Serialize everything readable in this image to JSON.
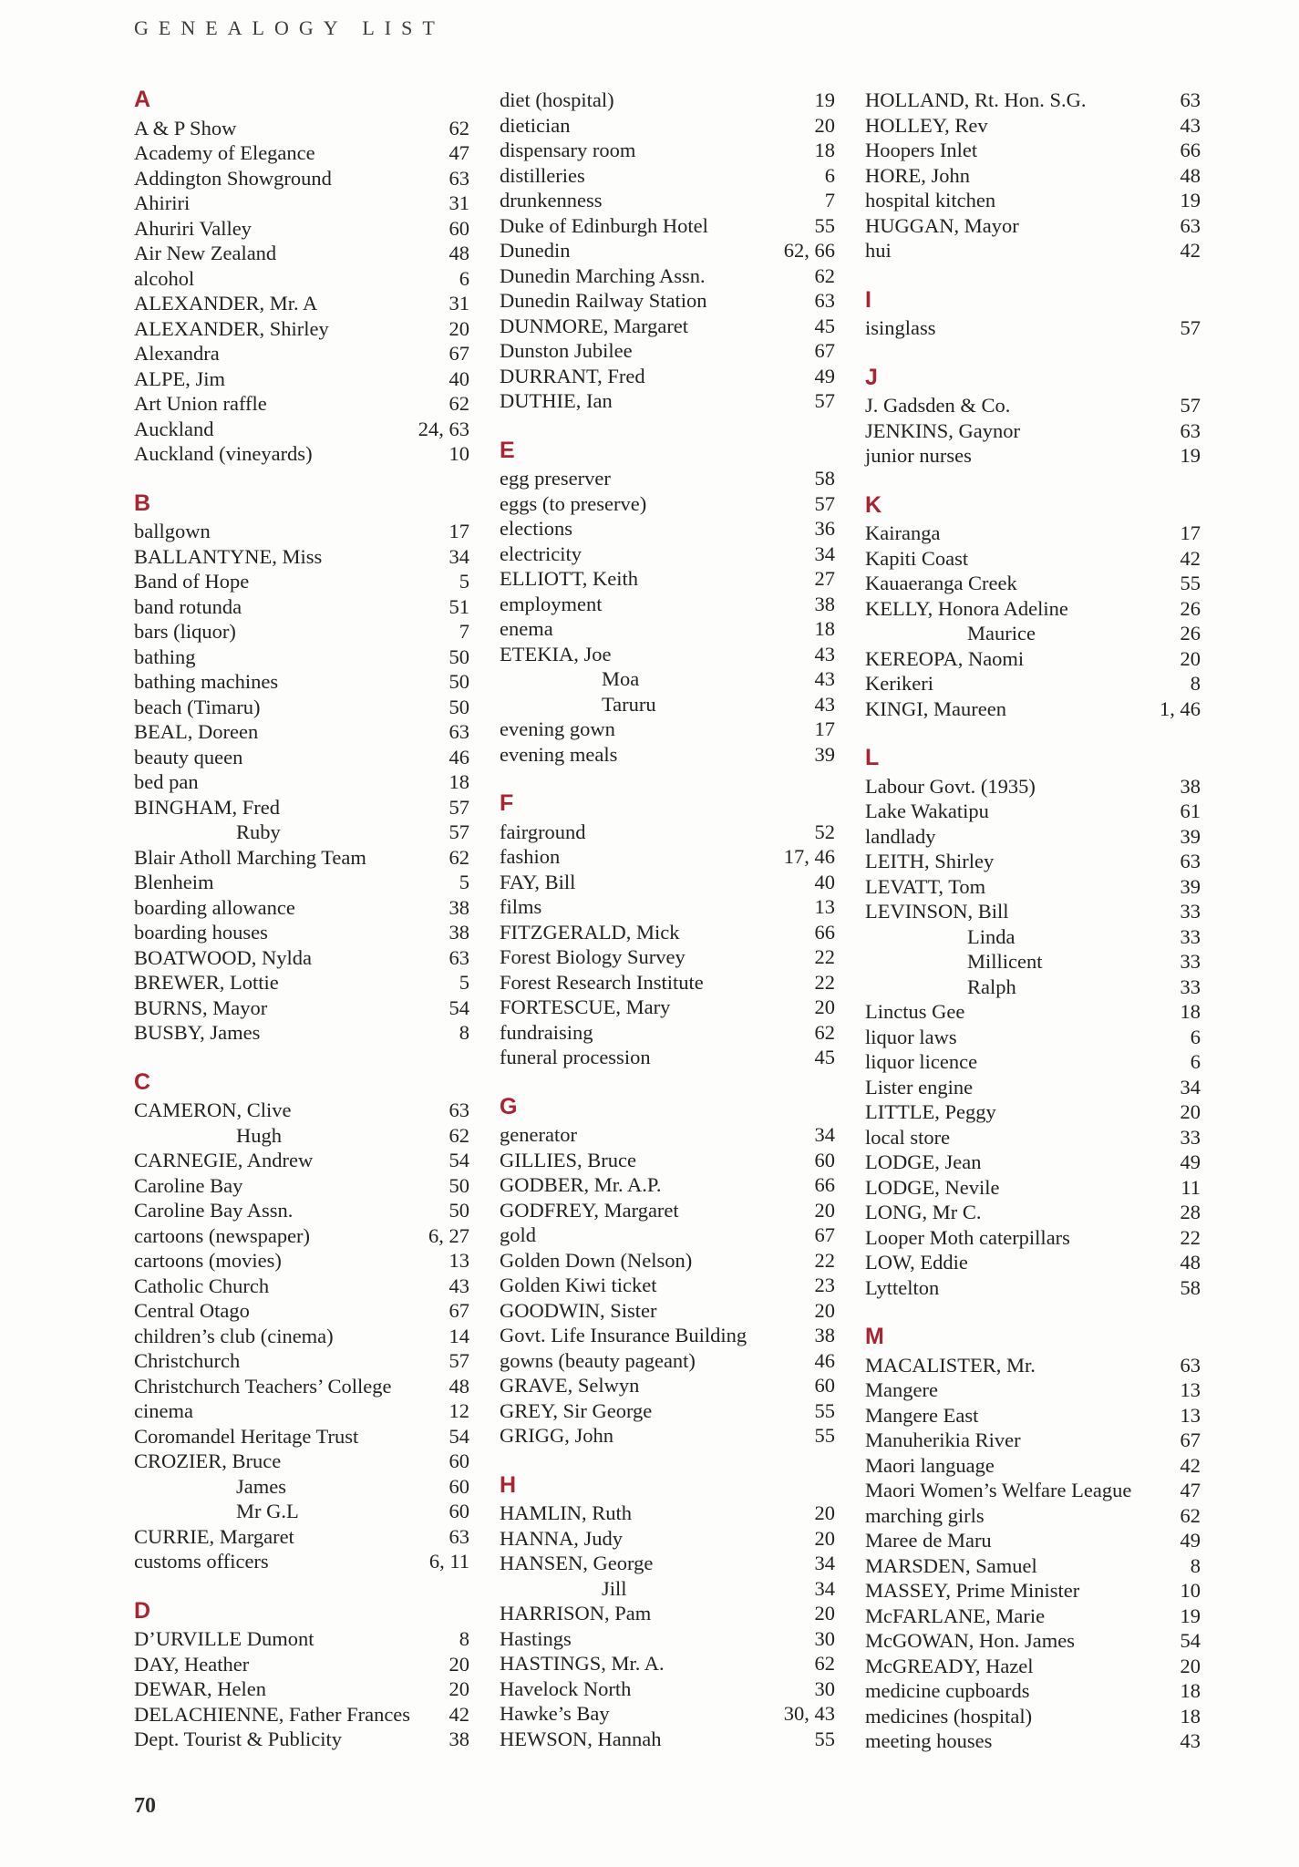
{
  "page": {
    "header": "GENEALOGY LIST",
    "page_number": "70",
    "accent_color": "#a92430",
    "text_color": "#232323",
    "background_color": "#fdfdfc"
  },
  "columns": [
    {
      "blocks": [
        {
          "letter": "A",
          "entries": [
            {
              "t": "A & P Show",
              "p": "62"
            },
            {
              "t": "Academy of Elegance",
              "p": "47"
            },
            {
              "t": "Addington Showground",
              "p": "63"
            },
            {
              "t": "Ahiriri",
              "p": "31"
            },
            {
              "t": "Ahuriri Valley",
              "p": "60"
            },
            {
              "t": "Air New Zealand",
              "p": "48"
            },
            {
              "t": "alcohol",
              "p": "6"
            },
            {
              "t": "ALEXANDER, Mr. A",
              "p": "31"
            },
            {
              "t": "ALEXANDER, Shirley",
              "p": "20"
            },
            {
              "t": "Alexandra",
              "p": "67"
            },
            {
              "t": "ALPE, Jim",
              "p": "40"
            },
            {
              "t": "Art Union raffle",
              "p": "62"
            },
            {
              "t": "Auckland",
              "p": "24, 63"
            },
            {
              "t": "Auckland (vineyards)",
              "p": "10"
            }
          ]
        },
        {
          "letter": "B",
          "entries": [
            {
              "t": "ballgown",
              "p": "17"
            },
            {
              "t": "BALLANTYNE, Miss",
              "p": "34"
            },
            {
              "t": "Band of Hope",
              "p": "5"
            },
            {
              "t": "band rotunda",
              "p": "51"
            },
            {
              "t": "bars (liquor)",
              "p": "7"
            },
            {
              "t": "bathing",
              "p": "50"
            },
            {
              "t": "bathing machines",
              "p": "50"
            },
            {
              "t": "beach (Timaru)",
              "p": "50"
            },
            {
              "t": "BEAL, Doreen",
              "p": "63"
            },
            {
              "t": "beauty queen",
              "p": "46"
            },
            {
              "t": "bed pan",
              "p": "18"
            },
            {
              "t": "BINGHAM, Fred",
              "p": "57"
            },
            {
              "t": "Ruby",
              "p": "57",
              "sub": true
            },
            {
              "t": "Blair Atholl Marching Team",
              "p": "62"
            },
            {
              "t": "Blenheim",
              "p": "5"
            },
            {
              "t": "boarding allowance",
              "p": "38"
            },
            {
              "t": "boarding houses",
              "p": "38"
            },
            {
              "t": "BOATWOOD, Nylda",
              "p": "63"
            },
            {
              "t": "BREWER, Lottie",
              "p": "5"
            },
            {
              "t": "BURNS, Mayor",
              "p": "54"
            },
            {
              "t": "BUSBY, James",
              "p": "8"
            }
          ]
        },
        {
          "letter": "C",
          "entries": [
            {
              "t": "CAMERON, Clive",
              "p": "63"
            },
            {
              "t": "Hugh",
              "p": "62",
              "sub": true
            },
            {
              "t": "CARNEGIE, Andrew",
              "p": "54"
            },
            {
              "t": "Caroline Bay",
              "p": "50"
            },
            {
              "t": "Caroline Bay Assn.",
              "p": "50"
            },
            {
              "t": "cartoons (newspaper)",
              "p": "6, 27"
            },
            {
              "t": "cartoons (movies)",
              "p": "13"
            },
            {
              "t": "Catholic Church",
              "p": "43"
            },
            {
              "t": "Central Otago",
              "p": "67"
            },
            {
              "t": "children’s club (cinema)",
              "p": "14"
            },
            {
              "t": "Christchurch",
              "p": "57"
            },
            {
              "t": "Christchurch Teachers’ College",
              "p": "48"
            },
            {
              "t": "cinema",
              "p": "12"
            },
            {
              "t": "Coromandel Heritage Trust",
              "p": "54"
            },
            {
              "t": "CROZIER, Bruce",
              "p": "60"
            },
            {
              "t": "James",
              "p": "60",
              "sub": true
            },
            {
              "t": "Mr G.L",
              "p": "60",
              "sub": true
            },
            {
              "t": "CURRIE, Margaret",
              "p": "63"
            },
            {
              "t": "customs officers",
              "p": "6, 11"
            }
          ]
        },
        {
          "letter": "D",
          "entries": [
            {
              "t": "D’URVILLE Dumont",
              "p": "8"
            },
            {
              "t": "DAY, Heather",
              "p": "20"
            },
            {
              "t": "DEWAR, Helen",
              "p": "20"
            },
            {
              "t": "DELACHIENNE, Father Frances",
              "p": "42"
            },
            {
              "t": "Dept. Tourist & Publicity",
              "p": "38"
            }
          ]
        }
      ]
    },
    {
      "blocks": [
        {
          "letter": null,
          "entries": [
            {
              "t": "diet (hospital)",
              "p": "19"
            },
            {
              "t": "dietician",
              "p": "20"
            },
            {
              "t": "dispensary room",
              "p": "18"
            },
            {
              "t": "distilleries",
              "p": "6"
            },
            {
              "t": "drunkenness",
              "p": "7"
            },
            {
              "t": "Duke of Edinburgh Hotel",
              "p": "55"
            },
            {
              "t": "Dunedin",
              "p": "62, 66"
            },
            {
              "t": "Dunedin Marching Assn.",
              "p": "62"
            },
            {
              "t": "Dunedin Railway Station",
              "p": "63"
            },
            {
              "t": "DUNMORE, Margaret",
              "p": "45"
            },
            {
              "t": "Dunston Jubilee",
              "p": "67"
            },
            {
              "t": "DURRANT, Fred",
              "p": "49"
            },
            {
              "t": "DUTHIE, Ian",
              "p": "57"
            }
          ]
        },
        {
          "letter": "E",
          "entries": [
            {
              "t": "egg preserver",
              "p": "58"
            },
            {
              "t": "eggs (to preserve)",
              "p": "57"
            },
            {
              "t": "elections",
              "p": "36"
            },
            {
              "t": "electricity",
              "p": "34"
            },
            {
              "t": "ELLIOTT, Keith",
              "p": "27"
            },
            {
              "t": "employment",
              "p": "38"
            },
            {
              "t": "enema",
              "p": "18"
            },
            {
              "t": "ETEKIA, Joe",
              "p": "43"
            },
            {
              "t": "Moa",
              "p": "43",
              "sub": true
            },
            {
              "t": "Taruru",
              "p": "43",
              "sub": true
            },
            {
              "t": "evening gown",
              "p": "17"
            },
            {
              "t": "evening meals",
              "p": "39"
            }
          ]
        },
        {
          "letter": "F",
          "entries": [
            {
              "t": "fairground",
              "p": "52"
            },
            {
              "t": "fashion",
              "p": "17, 46"
            },
            {
              "t": "FAY, Bill",
              "p": "40"
            },
            {
              "t": "films",
              "p": "13"
            },
            {
              "t": "FITZGERALD, Mick",
              "p": "66"
            },
            {
              "t": "Forest Biology Survey",
              "p": "22"
            },
            {
              "t": "Forest Research Institute",
              "p": "22"
            },
            {
              "t": "FORTESCUE, Mary",
              "p": "20"
            },
            {
              "t": "fundraising",
              "p": "62"
            },
            {
              "t": "funeral procession",
              "p": "45"
            }
          ]
        },
        {
          "letter": "G",
          "entries": [
            {
              "t": "generator",
              "p": "34"
            },
            {
              "t": "GILLIES, Bruce",
              "p": "60"
            },
            {
              "t": "GODBER, Mr. A.P.",
              "p": "66"
            },
            {
              "t": "GODFREY, Margaret",
              "p": "20"
            },
            {
              "t": "gold",
              "p": "67"
            },
            {
              "t": "Golden Down (Nelson)",
              "p": "22"
            },
            {
              "t": "Golden Kiwi ticket",
              "p": "23"
            },
            {
              "t": "GOODWIN, Sister",
              "p": "20"
            },
            {
              "t": "Govt. Life Insurance Building",
              "p": "38"
            },
            {
              "t": "gowns (beauty pageant)",
              "p": "46"
            },
            {
              "t": "GRAVE, Selwyn",
              "p": "60"
            },
            {
              "t": "GREY, Sir George",
              "p": "55"
            },
            {
              "t": "GRIGG, John",
              "p": "55"
            }
          ]
        },
        {
          "letter": "H",
          "entries": [
            {
              "t": "HAMLIN, Ruth",
              "p": "20"
            },
            {
              "t": "HANNA, Judy",
              "p": "20"
            },
            {
              "t": "HANSEN, George",
              "p": "34"
            },
            {
              "t": "Jill",
              "p": "34",
              "sub": true
            },
            {
              "t": "HARRISON, Pam",
              "p": "20"
            },
            {
              "t": "Hastings",
              "p": "30"
            },
            {
              "t": "HASTINGS, Mr. A.",
              "p": "62"
            },
            {
              "t": "Havelock North",
              "p": "30"
            },
            {
              "t": "Hawke’s Bay",
              "p": "30, 43"
            },
            {
              "t": "HEWSON, Hannah",
              "p": "55"
            }
          ]
        }
      ]
    },
    {
      "blocks": [
        {
          "letter": null,
          "entries": [
            {
              "t": "HOLLAND, Rt. Hon. S.G.",
              "p": "63"
            },
            {
              "t": "HOLLEY, Rev",
              "p": "43"
            },
            {
              "t": "Hoopers Inlet",
              "p": "66"
            },
            {
              "t": "HORE, John",
              "p": "48"
            },
            {
              "t": "hospital kitchen",
              "p": "19"
            },
            {
              "t": "HUGGAN, Mayor",
              "p": "63"
            },
            {
              "t": "hui",
              "p": "42"
            }
          ]
        },
        {
          "letter": "I",
          "entries": [
            {
              "t": "isinglass",
              "p": "57"
            }
          ]
        },
        {
          "letter": "J",
          "entries": [
            {
              "t": "J. Gadsden & Co.",
              "p": "57"
            },
            {
              "t": "JENKINS, Gaynor",
              "p": "63"
            },
            {
              "t": "junior nurses",
              "p": "19"
            }
          ]
        },
        {
          "letter": "K",
          "entries": [
            {
              "t": "Kairanga",
              "p": "17"
            },
            {
              "t": "Kapiti Coast",
              "p": "42"
            },
            {
              "t": "Kauaeranga Creek",
              "p": "55"
            },
            {
              "t": "KELLY, Honora Adeline",
              "p": "26"
            },
            {
              "t": "Maurice",
              "p": "26",
              "sub": true
            },
            {
              "t": "KEREOPA, Naomi",
              "p": "20"
            },
            {
              "t": "Kerikeri",
              "p": "8"
            },
            {
              "t": "KINGI, Maureen",
              "p": "1, 46"
            }
          ]
        },
        {
          "letter": "L",
          "entries": [
            {
              "t": "Labour Govt. (1935)",
              "p": "38"
            },
            {
              "t": "Lake Wakatipu",
              "p": "61"
            },
            {
              "t": "landlady",
              "p": "39"
            },
            {
              "t": "LEITH, Shirley",
              "p": "63"
            },
            {
              "t": "LEVATT, Tom",
              "p": "39"
            },
            {
              "t": "LEVINSON, Bill",
              "p": "33"
            },
            {
              "t": "Linda",
              "p": "33",
              "sub": true
            },
            {
              "t": "Millicent",
              "p": "33",
              "sub": true
            },
            {
              "t": "Ralph",
              "p": "33",
              "sub": true
            },
            {
              "t": "Linctus Gee",
              "p": "18"
            },
            {
              "t": "liquor laws",
              "p": "6"
            },
            {
              "t": "liquor licence",
              "p": "6"
            },
            {
              "t": "Lister engine",
              "p": "34"
            },
            {
              "t": "LITTLE, Peggy",
              "p": "20"
            },
            {
              "t": "local store",
              "p": "33"
            },
            {
              "t": "LODGE, Jean",
              "p": "49"
            },
            {
              "t": "LODGE, Nevile",
              "p": "11"
            },
            {
              "t": "LONG, Mr C.",
              "p": "28"
            },
            {
              "t": "Looper Moth caterpillars",
              "p": "22"
            },
            {
              "t": "LOW, Eddie",
              "p": "48"
            },
            {
              "t": "Lyttelton",
              "p": "58"
            }
          ]
        },
        {
          "letter": "M",
          "entries": [
            {
              "t": "MACALISTER, Mr.",
              "p": "63"
            },
            {
              "t": "Mangere",
              "p": "13"
            },
            {
              "t": "Mangere East",
              "p": "13"
            },
            {
              "t": "Manuherikia River",
              "p": "67"
            },
            {
              "t": "Maori language",
              "p": "42"
            },
            {
              "t": "Maori Women’s Welfare League",
              "p": "47"
            },
            {
              "t": "marching girls",
              "p": "62"
            },
            {
              "t": "Maree de Maru",
              "p": "49"
            },
            {
              "t": "MARSDEN, Samuel",
              "p": "8"
            },
            {
              "t": "MASSEY, Prime Minister",
              "p": "10"
            },
            {
              "t": "McFARLANE, Marie",
              "p": "19"
            },
            {
              "t": "McGOWAN, Hon. James",
              "p": "54"
            },
            {
              "t": "McGREADY, Hazel",
              "p": "20"
            },
            {
              "t": "medicine cupboards",
              "p": "18"
            },
            {
              "t": "medicines (hospital)",
              "p": "18"
            },
            {
              "t": "meeting houses",
              "p": "43"
            }
          ]
        }
      ]
    }
  ]
}
